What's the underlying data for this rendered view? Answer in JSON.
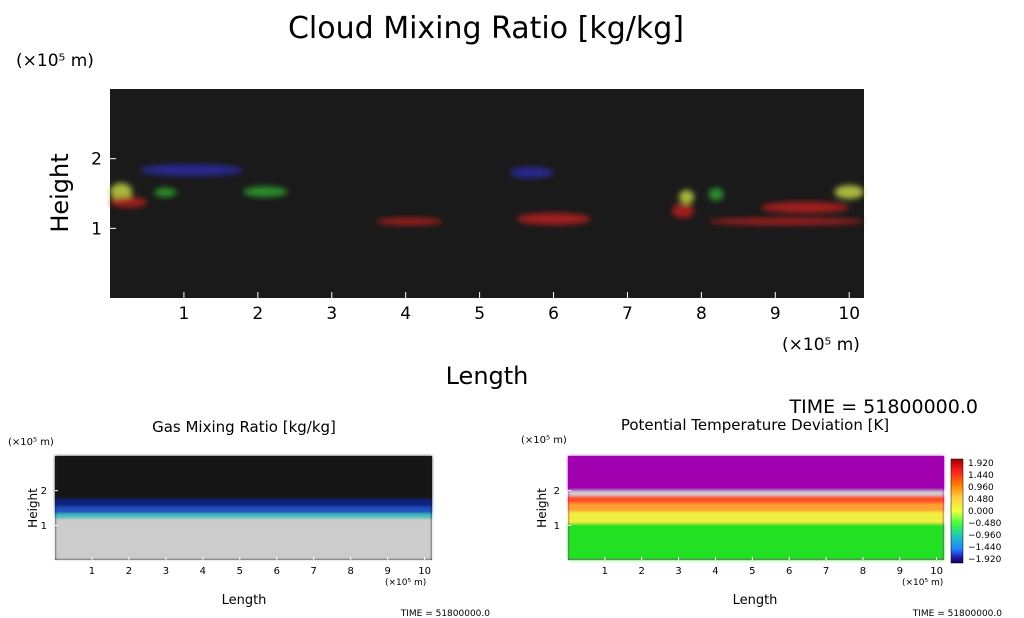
{
  "chart_data": [
    {
      "type": "heatmap",
      "title": "Cloud Mixing Ratio [kg/kg]",
      "xlabel": "Length",
      "ylabel": "Height",
      "x_unit": "(×10⁵ m)",
      "y_unit": "(×10⁵ m)",
      "xticks": [
        1,
        2,
        3,
        4,
        5,
        6,
        7,
        8,
        9,
        10
      ],
      "yticks": [
        1,
        2
      ],
      "xlim": [
        0,
        10.2
      ],
      "ylim": [
        0,
        3
      ],
      "time_label": "TIME = 51800000.0",
      "background": "#1a1a1a",
      "features": [
        {
          "color": "#2a2a9a",
          "x": [
            0.4,
            1.8
          ],
          "y": [
            1.75,
            1.92
          ]
        },
        {
          "color": "#2a2a9a",
          "x": [
            5.4,
            6.0
          ],
          "y": [
            1.72,
            1.88
          ]
        },
        {
          "color": "#b8c840",
          "x": [
            0.0,
            0.3
          ],
          "y": [
            1.4,
            1.65
          ]
        },
        {
          "color": "#2e9a2e",
          "x": [
            0.6,
            0.9
          ],
          "y": [
            1.45,
            1.58
          ]
        },
        {
          "color": "#2e9a2e",
          "x": [
            1.8,
            2.4
          ],
          "y": [
            1.45,
            1.6
          ]
        },
        {
          "color": "#b02020",
          "x": [
            0.0,
            0.5
          ],
          "y": [
            1.3,
            1.45
          ]
        },
        {
          "color": "#b02020",
          "x": [
            3.6,
            4.5
          ],
          "y": [
            1.05,
            1.15
          ]
        },
        {
          "color": "#b02020",
          "x": [
            5.5,
            6.5
          ],
          "y": [
            1.05,
            1.22
          ]
        },
        {
          "color": "#b02020",
          "x": [
            7.6,
            7.9
          ],
          "y": [
            1.15,
            1.35
          ]
        },
        {
          "color": "#b8c840",
          "x": [
            7.7,
            7.9
          ],
          "y": [
            1.35,
            1.55
          ]
        },
        {
          "color": "#2e9a2e",
          "x": [
            8.1,
            8.3
          ],
          "y": [
            1.4,
            1.58
          ]
        },
        {
          "color": "#b02020",
          "x": [
            8.1,
            10.2
          ],
          "y": [
            1.05,
            1.15
          ]
        },
        {
          "color": "#b02020",
          "x": [
            8.8,
            10.0
          ],
          "y": [
            1.22,
            1.38
          ]
        },
        {
          "color": "#b8c840",
          "x": [
            9.8,
            10.2
          ],
          "y": [
            1.42,
            1.62
          ]
        }
      ]
    },
    {
      "type": "heatmap",
      "title": "Gas Mixing Ratio [kg/kg]",
      "xlabel": "Length",
      "ylabel": "Height",
      "x_unit": "(×10⁵ m)",
      "y_unit": "(×10⁵ m)",
      "xticks": [
        1,
        2,
        3,
        4,
        5,
        6,
        7,
        8,
        9,
        10
      ],
      "yticks": [
        1,
        2
      ],
      "xlim": [
        0,
        10.2
      ],
      "ylim": [
        0,
        3
      ],
      "time_label": "TIME = 51800000.0",
      "layers": [
        {
          "color": "#cccccc",
          "y": [
            0.0,
            1.2
          ]
        },
        {
          "color": "#40c0c0",
          "y": [
            1.2,
            1.35
          ]
        },
        {
          "color": "#2050c0",
          "y": [
            1.35,
            1.55
          ]
        },
        {
          "color": "#102080",
          "y": [
            1.55,
            1.75
          ]
        },
        {
          "color": "#151515",
          "y": [
            1.75,
            3.0
          ]
        }
      ]
    },
    {
      "type": "heatmap",
      "title": "Potential Temperature Deviation [K]",
      "xlabel": "Length",
      "ylabel": "Height",
      "x_unit": "(×10⁵ m)",
      "y_unit": "(×10⁵ m)",
      "xticks": [
        1,
        2,
        3,
        4,
        5,
        6,
        7,
        8,
        9,
        10
      ],
      "yticks": [
        1,
        2
      ],
      "xlim": [
        0,
        10.2
      ],
      "ylim": [
        0,
        3
      ],
      "time_label": "TIME = 51800000.0",
      "layers": [
        {
          "color": "#22e022",
          "y": [
            0.0,
            1.05
          ]
        },
        {
          "color": "#f0f040",
          "y": [
            1.05,
            1.4
          ]
        },
        {
          "color": "#ffa030",
          "y": [
            1.4,
            1.65
          ]
        },
        {
          "color": "#ff5020",
          "y": [
            1.65,
            1.85
          ]
        },
        {
          "color": "#d0d0d0",
          "y": [
            1.85,
            2.0
          ]
        },
        {
          "color": "#a000b0",
          "y": [
            2.0,
            3.0
          ]
        }
      ],
      "colorbar": {
        "labels": [
          "1.920",
          "1.440",
          "0.960",
          "0.480",
          "0.000",
          "−0.480",
          "−0.960",
          "−1.440",
          "−1.920"
        ],
        "colors": [
          "#a00000",
          "#ff2020",
          "#ff8000",
          "#ffd040",
          "#f0ff40",
          "#40ff40",
          "#20c0c0",
          "#2080ff",
          "#2020b0",
          "#100060"
        ]
      }
    }
  ]
}
